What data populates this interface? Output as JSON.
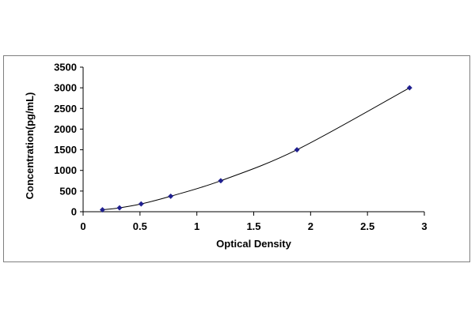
{
  "chart_data": {
    "type": "scatter",
    "title": "",
    "xlabel": "Optical Density",
    "ylabel": "Concentration(pg/mL)",
    "xlim": [
      0,
      3
    ],
    "ylim": [
      0,
      3500
    ],
    "x_ticks": [
      "0",
      "0.5",
      "1",
      "1.5",
      "2",
      "2.5",
      "3"
    ],
    "y_ticks": [
      "0",
      "500",
      "1000",
      "1500",
      "2000",
      "2500",
      "3000",
      "3500"
    ],
    "grid": false,
    "legend": "none",
    "series": [
      {
        "x": [
          0.17,
          0.32,
          0.51,
          0.77,
          1.21,
          1.88,
          2.87
        ],
        "y": [
          47,
          94,
          188,
          375,
          750,
          1500,
          3000
        ],
        "marker": "diamond",
        "line": "smooth",
        "color": "#1f1f8f"
      }
    ]
  }
}
